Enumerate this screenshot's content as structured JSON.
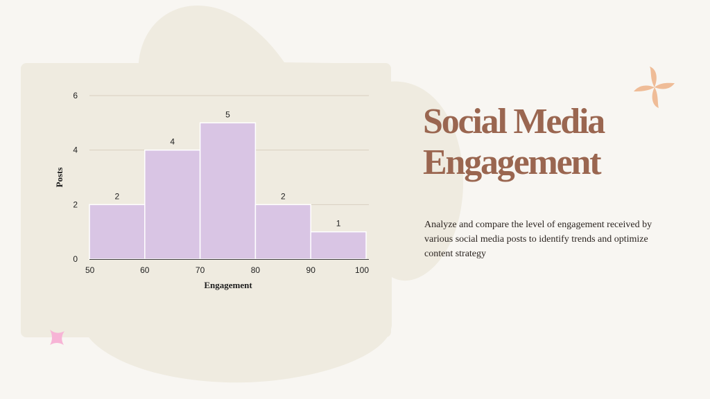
{
  "slide": {
    "title": "Social Media Engagement",
    "description": "Analyze and compare the level of engagement received by various social media posts to identify trends and optimize content strategy"
  },
  "colors": {
    "background": "#F8F6F2",
    "blob": "#EFEBE0",
    "bar_fill": "#D9C5E4",
    "bar_stroke": "#FFFFFF",
    "title": "#9A6650",
    "gridline": "#D8CFC0",
    "flower_accent": "#EFBC97",
    "sparkle_accent": "#F7B4D6"
  },
  "chart_data": {
    "type": "bar",
    "title": "",
    "xlabel": "Engagement",
    "ylabel": "Posts",
    "bins": [
      [
        50,
        60
      ],
      [
        60,
        70
      ],
      [
        70,
        80
      ],
      [
        80,
        90
      ],
      [
        90,
        100
      ]
    ],
    "values": [
      2,
      4,
      5,
      2,
      1
    ],
    "x_ticks": [
      50,
      60,
      70,
      80,
      90,
      100
    ],
    "y_ticks": [
      0,
      2,
      4,
      6
    ],
    "xlim": [
      50,
      100
    ],
    "ylim": [
      0,
      6
    ],
    "grid": true,
    "data_labels": true
  }
}
